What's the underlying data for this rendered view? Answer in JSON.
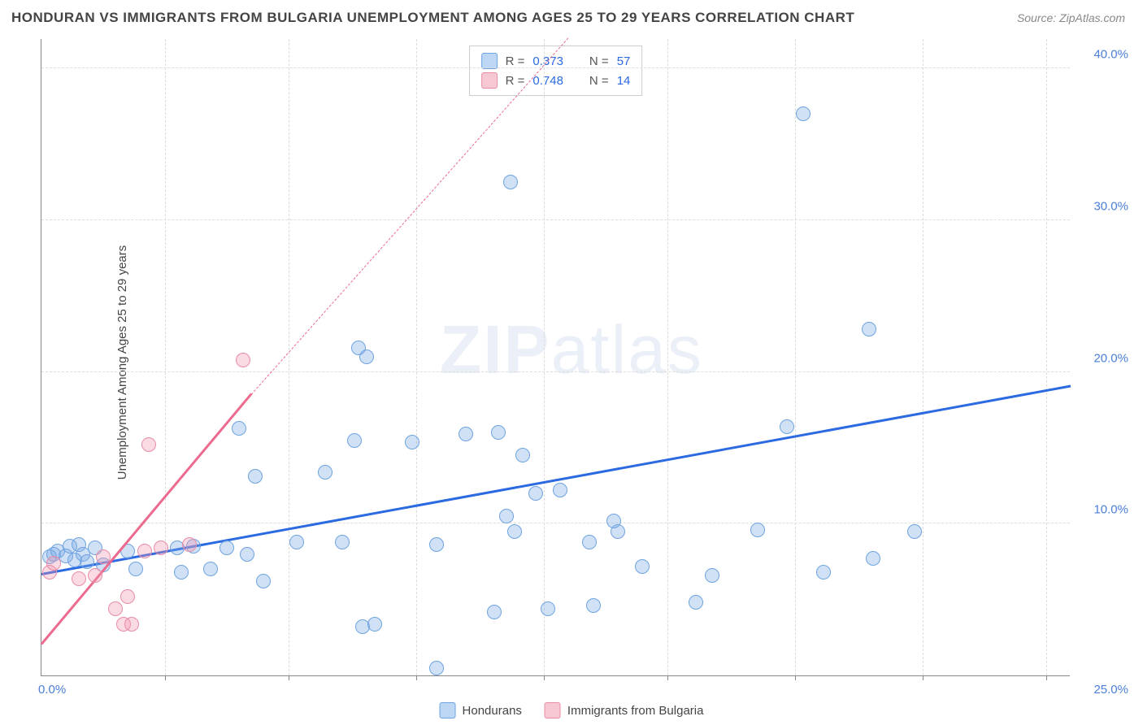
{
  "title": "HONDURAN VS IMMIGRANTS FROM BULGARIA UNEMPLOYMENT AMONG AGES 25 TO 29 YEARS CORRELATION CHART",
  "source": "Source: ZipAtlas.com",
  "ylabel": "Unemployment Among Ages 25 to 29 years",
  "watermark_a": "ZIP",
  "watermark_b": "atlas",
  "chart": {
    "type": "scatter",
    "background_color": "#ffffff",
    "grid_color": "#dddddd",
    "axis_color": "#888888",
    "xlim": [
      0,
      25
    ],
    "ylim": [
      0,
      42
    ],
    "xticks": [
      3.0,
      6.0,
      9.1,
      12.2,
      15.2,
      18.3,
      21.4,
      24.4
    ],
    "yticks": [
      10,
      20,
      30,
      40
    ],
    "ytick_labels": [
      "10.0%",
      "20.0%",
      "30.0%",
      "40.0%"
    ],
    "x_origin_label": "0.0%",
    "x_max_label": "25.0%",
    "marker_radius": 9,
    "marker_border_width": 1.2,
    "stats_box": {
      "rows": [
        {
          "swatch_fill": "#bcd6f3",
          "swatch_border": "#6fa3e0",
          "r_label": "R =",
          "r": "0.373",
          "n_label": "N =",
          "n": "57"
        },
        {
          "swatch_fill": "#f6c8d3",
          "swatch_border": "#e98da6",
          "r_label": "R =",
          "r": "0.748",
          "n_label": "N =",
          "n": "14"
        }
      ]
    },
    "bottom_legend": [
      {
        "swatch_fill": "#bcd6f3",
        "swatch_border": "#6fa3e0",
        "label": "Hondurans"
      },
      {
        "swatch_fill": "#f6c8d3",
        "swatch_border": "#e98da6",
        "label": "Immigrants from Bulgaria"
      }
    ],
    "series": [
      {
        "name": "Hondurans",
        "fill": "rgba(120,170,230,0.35)",
        "border": "#6fa3e0",
        "trend": {
          "color": "#2b6ae0",
          "width": 3,
          "dash": "solid",
          "x1": 0.0,
          "y1": 6.6,
          "x2": 25.0,
          "y2": 19.0
        },
        "points": [
          [
            0.2,
            7.8
          ],
          [
            0.3,
            8.0
          ],
          [
            0.4,
            8.2
          ],
          [
            0.6,
            7.9
          ],
          [
            0.7,
            8.5
          ],
          [
            0.8,
            7.6
          ],
          [
            0.9,
            8.6
          ],
          [
            1.0,
            8.0
          ],
          [
            1.1,
            7.5
          ],
          [
            1.3,
            8.4
          ],
          [
            1.5,
            7.3
          ],
          [
            2.1,
            8.2
          ],
          [
            2.3,
            7.0
          ],
          [
            3.3,
            8.4
          ],
          [
            3.4,
            6.8
          ],
          [
            3.7,
            8.5
          ],
          [
            4.1,
            7.0
          ],
          [
            4.5,
            8.4
          ],
          [
            4.8,
            16.3
          ],
          [
            5.0,
            8.0
          ],
          [
            5.2,
            13.1
          ],
          [
            5.4,
            6.2
          ],
          [
            6.2,
            8.8
          ],
          [
            6.9,
            13.4
          ],
          [
            7.3,
            8.8
          ],
          [
            7.6,
            15.5
          ],
          [
            7.7,
            21.6
          ],
          [
            7.9,
            21.0
          ],
          [
            7.8,
            3.2
          ],
          [
            8.1,
            3.4
          ],
          [
            9.0,
            15.4
          ],
          [
            9.6,
            8.6
          ],
          [
            9.6,
            0.5
          ],
          [
            10.3,
            15.9
          ],
          [
            11.0,
            4.2
          ],
          [
            11.1,
            16.0
          ],
          [
            11.3,
            10.5
          ],
          [
            11.4,
            32.5
          ],
          [
            11.5,
            9.5
          ],
          [
            11.7,
            14.5
          ],
          [
            12.0,
            12.0
          ],
          [
            12.3,
            4.4
          ],
          [
            12.6,
            12.2
          ],
          [
            13.3,
            8.8
          ],
          [
            13.4,
            4.6
          ],
          [
            13.9,
            10.2
          ],
          [
            14.0,
            9.5
          ],
          [
            14.6,
            7.2
          ],
          [
            15.9,
            4.8
          ],
          [
            16.3,
            6.6
          ],
          [
            17.4,
            9.6
          ],
          [
            18.1,
            16.4
          ],
          [
            18.5,
            37.0
          ],
          [
            19.0,
            6.8
          ],
          [
            20.1,
            22.8
          ],
          [
            20.2,
            7.7
          ],
          [
            21.2,
            9.5
          ]
        ]
      },
      {
        "name": "Immigrants from Bulgaria",
        "fill": "rgba(240,150,175,0.35)",
        "border": "#e98da6",
        "trend": {
          "color": "#ec6a8e",
          "width": 3,
          "dash": "solid",
          "x1": 0.0,
          "y1": 2.0,
          "x2": 5.1,
          "y2": 18.5
        },
        "trend_ext": {
          "color": "#ec6a8e",
          "width": 1,
          "dash": "dashed",
          "x1": 5.1,
          "y1": 18.5,
          "x2": 12.8,
          "y2": 42.0
        },
        "points": [
          [
            0.2,
            6.8
          ],
          [
            0.3,
            7.4
          ],
          [
            0.9,
            6.4
          ],
          [
            1.3,
            6.6
          ],
          [
            1.5,
            7.8
          ],
          [
            1.8,
            4.4
          ],
          [
            2.0,
            3.4
          ],
          [
            2.1,
            5.2
          ],
          [
            2.2,
            3.4
          ],
          [
            2.5,
            8.2
          ],
          [
            2.6,
            15.2
          ],
          [
            2.9,
            8.4
          ],
          [
            3.6,
            8.6
          ],
          [
            4.9,
            20.8
          ]
        ]
      }
    ]
  }
}
